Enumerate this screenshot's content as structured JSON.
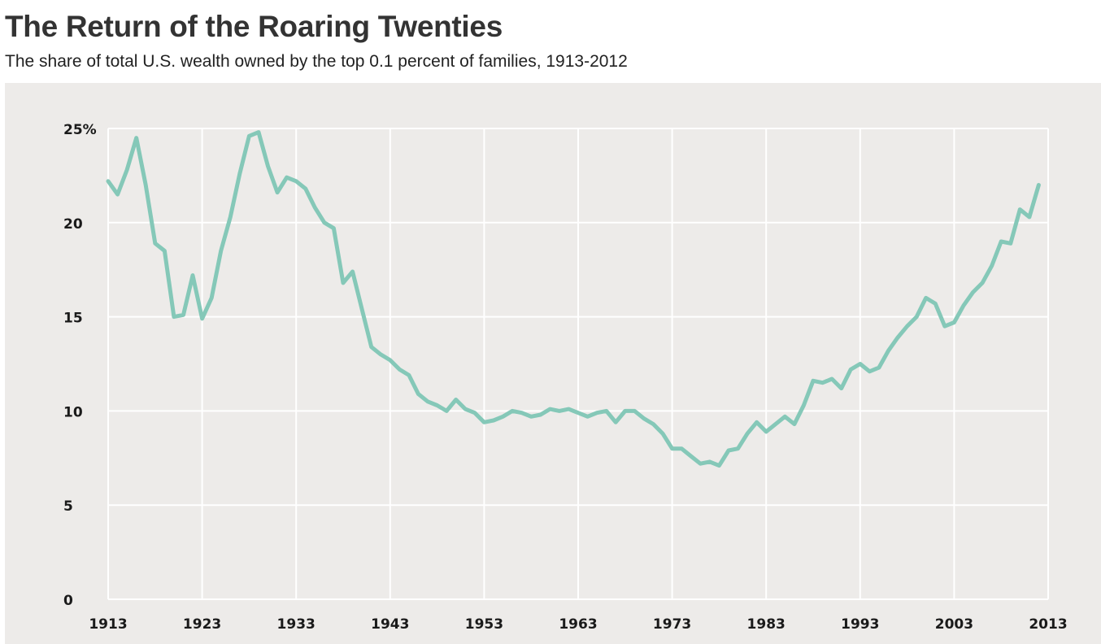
{
  "header": {
    "title": "The Return of the Roaring Twenties",
    "subtitle": "The share of total U.S. wealth owned by the top 0.1 percent of families, 1913-2012"
  },
  "colors": {
    "line": "#85c8b8",
    "plot_background": "#edebe9",
    "grid": "#ffffff"
  },
  "chart_data": {
    "type": "line",
    "title": "The Return of the Roaring Twenties",
    "subtitle": "The share of total U.S. wealth owned by the top 0.1 percent of families, 1913-2012",
    "xlim": [
      1913,
      2013
    ],
    "ylim": [
      0,
      25
    ],
    "grid": true,
    "x_ticks": [
      1913,
      1923,
      1933,
      1943,
      1953,
      1963,
      1973,
      1983,
      1993,
      2003,
      2013
    ],
    "x_tick_labels": [
      "1913",
      "1923",
      "1933",
      "1943",
      "1953",
      "1963",
      "1973",
      "1983",
      "1993",
      "2003",
      "2013"
    ],
    "y_ticks": [
      0,
      5,
      10,
      15,
      20,
      25
    ],
    "y_tick_labels": [
      "0",
      "5",
      "10",
      "15",
      "20",
      "25%"
    ],
    "series": [
      {
        "x": [
          1913,
          1914,
          1915,
          1916,
          1917,
          1918,
          1919,
          1920,
          1921,
          1922,
          1923,
          1924,
          1925,
          1926,
          1927,
          1928,
          1929,
          1930,
          1931,
          1932,
          1933,
          1934,
          1935,
          1936,
          1937,
          1938,
          1939,
          1940,
          1941,
          1942,
          1943,
          1944,
          1945,
          1946,
          1947,
          1948,
          1949,
          1950,
          1951,
          1952,
          1953,
          1954,
          1955,
          1956,
          1957,
          1958,
          1959,
          1960,
          1961,
          1962,
          1963,
          1964,
          1965,
          1966,
          1967,
          1968,
          1969,
          1970,
          1971,
          1972,
          1973,
          1974,
          1975,
          1976,
          1977,
          1978,
          1979,
          1980,
          1981,
          1982,
          1983,
          1984,
          1985,
          1986,
          1987,
          1988,
          1989,
          1990,
          1991,
          1992,
          1993,
          1994,
          1995,
          1996,
          1997,
          1998,
          1999,
          2000,
          2001,
          2002,
          2003,
          2004,
          2005,
          2006,
          2007,
          2008,
          2009,
          2010,
          2011,
          2012
        ],
        "values": [
          22.2,
          21.5,
          22.8,
          24.5,
          22.0,
          18.9,
          18.5,
          15.0,
          15.1,
          17.2,
          14.9,
          16.0,
          18.5,
          20.3,
          22.6,
          24.6,
          24.8,
          23.0,
          21.6,
          22.4,
          22.2,
          21.8,
          20.8,
          20.0,
          19.7,
          16.8,
          17.4,
          15.4,
          13.4,
          13.0,
          12.7,
          12.2,
          11.9,
          10.9,
          10.5,
          10.3,
          10.0,
          10.6,
          10.1,
          9.9,
          9.4,
          9.5,
          9.7,
          10.0,
          9.9,
          9.7,
          9.8,
          10.1,
          10.0,
          10.1,
          9.9,
          9.7,
          9.9,
          10.0,
          9.4,
          10.0,
          10.0,
          9.6,
          9.3,
          8.8,
          8.0,
          8.0,
          7.6,
          7.2,
          7.3,
          7.1,
          7.9,
          8.0,
          8.8,
          9.4,
          8.9,
          9.3,
          9.7,
          9.3,
          10.3,
          11.6,
          11.5,
          11.7,
          11.2,
          12.2,
          12.5,
          12.1,
          12.3,
          13.2,
          13.9,
          14.5,
          15.0,
          16.0,
          15.7,
          14.5,
          14.7,
          15.6,
          16.3,
          16.8,
          17.7,
          19.0,
          18.9,
          20.7,
          20.3,
          22.0
        ]
      }
    ]
  }
}
